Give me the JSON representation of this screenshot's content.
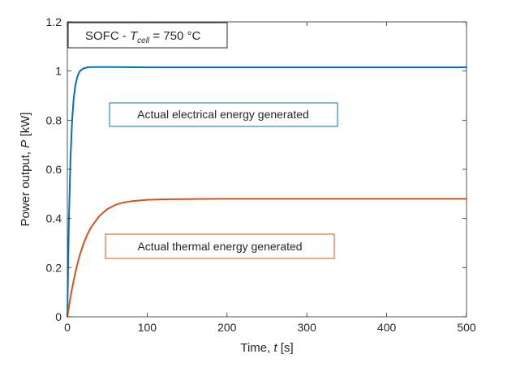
{
  "chart_data": {
    "type": "line",
    "title_box": {
      "prefix": "SOFC - ",
      "symbol": "T",
      "subscript": "cell",
      "suffix": " = 750 °C"
    },
    "xlabel": {
      "text": "Time, ",
      "symbol": "t",
      "unit": " [s]"
    },
    "ylabel": {
      "text": "Power output, ",
      "symbol": "P",
      "unit": " [kW]"
    },
    "xlim": [
      0,
      500
    ],
    "ylim": [
      0,
      1.2
    ],
    "xticks": [
      0,
      100,
      200,
      300,
      400,
      500
    ],
    "yticks": [
      0,
      0.2,
      0.4,
      0.6,
      0.8,
      1,
      1.2
    ],
    "xtick_labels": [
      "0",
      "100",
      "200",
      "300",
      "400",
      "500"
    ],
    "ytick_labels": [
      "0",
      "0.2",
      "0.4",
      "0.6",
      "0.8",
      "1",
      "1.2"
    ],
    "grid": false,
    "series": [
      {
        "color": "#0072BD",
        "x": [
          0,
          2,
          4,
          6,
          8,
          10,
          12,
          14,
          16,
          18,
          20,
          25,
          30,
          40,
          60,
          100,
          200,
          300,
          400,
          500
        ],
        "y": [
          0,
          0.4,
          0.65,
          0.8,
          0.89,
          0.94,
          0.97,
          0.99,
          1.0,
          1.006,
          1.01,
          1.015,
          1.016,
          1.016,
          1.016,
          1.015,
          1.015,
          1.015,
          1.015,
          1.015
        ]
      },
      {
        "color": "#D95319",
        "x": [
          0,
          2,
          5,
          10,
          15,
          20,
          25,
          30,
          40,
          50,
          60,
          70,
          80,
          100,
          120,
          150,
          200,
          300,
          400,
          500
        ],
        "y": [
          0,
          0.04,
          0.1,
          0.18,
          0.245,
          0.295,
          0.335,
          0.365,
          0.41,
          0.438,
          0.455,
          0.465,
          0.47,
          0.476,
          0.478,
          0.479,
          0.48,
          0.48,
          0.48,
          0.48
        ]
      }
    ],
    "annotations": [
      {
        "text": "Actual electrical energy generated",
        "color": "#0072BD"
      },
      {
        "text": "Actual thermal energy generated",
        "color": "#D95319"
      }
    ]
  }
}
